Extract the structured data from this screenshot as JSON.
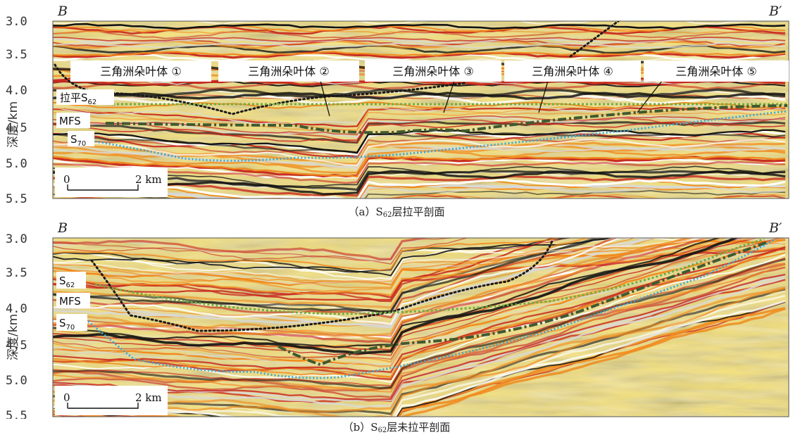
{
  "figure": {
    "y_axis_label": "深度/km",
    "y_ticks": [
      "3.0",
      "3.5",
      "4.0",
      "4.5",
      "5.0",
      "5.5"
    ],
    "left_corner": "B",
    "right_corner": "B′",
    "scale_bar": {
      "start": "0",
      "end": "2 km"
    }
  },
  "panel_a": {
    "caption_prefix": "（a）S",
    "caption_sub": "62",
    "caption_suffix": "层拉平剖面",
    "lobes": [
      "三角洲朵叶体 ①",
      "三角洲朵叶体 ②",
      "三角洲朵叶体 ③",
      "三角洲朵叶体 ④",
      "三角洲朵叶体 ⑤"
    ],
    "horizon_flat": {
      "text": "拉平S",
      "sub": "62"
    },
    "horizon_mfs": "MFS",
    "horizon_s70": {
      "text": "S",
      "sub": "70"
    }
  },
  "panel_b": {
    "caption_prefix": "（b）S",
    "caption_sub": "62",
    "caption_suffix": "层未拉平剖面",
    "horizon_s62": {
      "text": "S",
      "sub": "62"
    },
    "horizon_mfs": "MFS",
    "horizon_s70": {
      "text": "S",
      "sub": "70"
    }
  },
  "colors": {
    "seismic_red": "#c8281e",
    "seismic_orange": "#f08a1e",
    "seismic_yellow": "#f7d23a",
    "seismic_black": "#111111",
    "horizon_s62_green": "#6fae3e",
    "horizon_mfs_darkgreen": "#3f5a30",
    "horizon_s70_blue": "#3aa8d8",
    "delta_boundary_black": "#1a1a1a"
  }
}
